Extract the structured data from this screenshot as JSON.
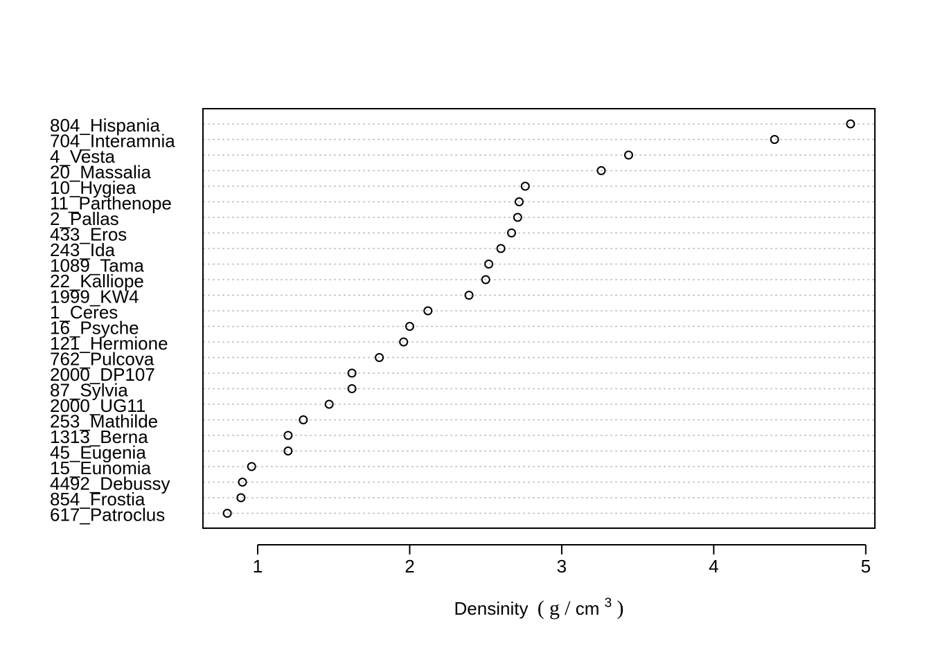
{
  "chart_data": {
    "type": "scatter",
    "subtype": "dotchart",
    "title": "",
    "xlabel": {
      "main": "Densinity",
      "open": "(",
      "unit_num": "g",
      "slash": "/",
      "unit_den": "cm",
      "exponent": "3",
      "close": ")"
    },
    "ylabel": "",
    "xlim": [
      0.64,
      5.06
    ],
    "xticks": [
      1,
      2,
      3,
      4,
      5
    ],
    "grid": "dotted horizontal guide lines",
    "legend": "none",
    "categories": [
      "804_Hispania",
      "704_Interamnia",
      "4_Vesta",
      "20_Massalia",
      "10_Hygiea",
      "11_Parthenope",
      "2_Pallas",
      "433_Eros",
      "243_Ida",
      "1089_Tama",
      "22_Kalliope",
      "1999_KW4",
      "1_Ceres",
      "16_Psyche",
      "121_Hermione",
      "762_Pulcova",
      "2000_DP107",
      "87_Sylvia",
      "2000_UG11",
      "253_Mathilde",
      "1313_Berna",
      "45_Eugenia",
      "15_Eunomia",
      "4492_Debussy",
      "854_Frostia",
      "617_Patroclus"
    ],
    "values": [
      4.9,
      4.4,
      3.44,
      3.26,
      2.76,
      2.72,
      2.71,
      2.67,
      2.6,
      2.52,
      2.5,
      2.39,
      2.12,
      2.0,
      1.96,
      1.8,
      1.62,
      1.62,
      1.47,
      1.3,
      1.2,
      1.2,
      0.96,
      0.9,
      0.89,
      0.8
    ],
    "colors": {
      "points": "#000000",
      "grid": "#bebebe",
      "axis": "#000000"
    }
  }
}
